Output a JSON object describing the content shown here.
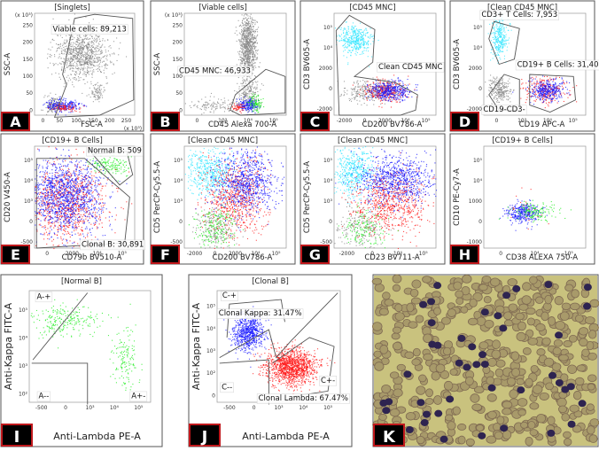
{
  "panels": [
    {
      "letter": "A",
      "title": "[Singlets]",
      "xlabel": "FSC-A",
      "ylabel": "SSC-A",
      "xticks": [
        "0",
        "50",
        "100",
        "150",
        "200",
        "250"
      ],
      "yticks": [
        "0",
        "50",
        "100",
        "150",
        "200",
        "250"
      ],
      "xunit": "(x 10³)",
      "yunit": "(x 10³)",
      "gates": [
        "Viable cells: 89,213"
      ]
    },
    {
      "letter": "B",
      "title": "[Viable cells]",
      "xlabel": "CD45 Alexa 700-A",
      "ylabel": "SSC-A",
      "xticks": [
        "0",
        "10³",
        "10⁴",
        "10⁵"
      ],
      "yticks": [
        "0",
        "50",
        "100",
        "150",
        "200",
        "250"
      ],
      "yunit": "(x 10³)",
      "gates": [
        "CD45 MNC: 46,933"
      ]
    },
    {
      "letter": "C",
      "title": "[CD45 MNC]",
      "xlabel": "CD200 BV786-A",
      "ylabel": "CD3 BV605-A",
      "xticks": [
        "-2000",
        "0",
        "2000",
        "10⁴",
        "10⁵"
      ],
      "yticks": [
        "-2000",
        "0",
        "2000",
        "10⁴",
        "10⁵"
      ],
      "gates": [
        "Clean CD45 MNC"
      ]
    },
    {
      "letter": "D",
      "title": "[Clean CD45 MNC]",
      "xlabel": "CD19 APC-A",
      "ylabel": "CD3 BV605-A",
      "xticks": [
        "0",
        "10³",
        "10⁴",
        "10⁵"
      ],
      "yticks": [
        "-2000",
        "0",
        "2000",
        "10⁴",
        "10⁵"
      ],
      "gates": [
        "CD3+ T Cells: 7,953",
        "CD19+ B Cells: 31,408",
        "CD19-CD3-"
      ]
    },
    {
      "letter": "E",
      "title": "[CD19+ B Cells]",
      "xlabel": "CD79b BV510-A",
      "ylabel": "CD20 V450-A",
      "xticks": [
        "0",
        "2000",
        "10⁴",
        "10⁵"
      ],
      "yticks": [
        "-500",
        "0",
        "10³",
        "10⁴",
        "10⁵"
      ],
      "gates": [
        "Normal B: 509",
        "Clonal B: 30,891"
      ]
    },
    {
      "letter": "F",
      "title": "[Clean CD45 MNC]",
      "xlabel": "CD200 BV786-A",
      "ylabel": "CD5 PerCP-Cy5.5-A",
      "xticks": [
        "-2000",
        "0",
        "2000",
        "10⁴",
        "10⁵"
      ],
      "yticks": [
        "-500",
        "0",
        "10³",
        "10⁴",
        "10⁵"
      ],
      "gates": []
    },
    {
      "letter": "G",
      "title": "[Clean CD45 MNC]",
      "xlabel": "CD23 BV711-A",
      "ylabel": "CD5 PerCP-Cy5.5-A",
      "xticks": [
        "-2000",
        "0",
        "10⁴",
        "10⁵"
      ],
      "yticks": [
        "-500",
        "0",
        "10³",
        "10⁴",
        "10⁵"
      ],
      "gates": []
    },
    {
      "letter": "H",
      "title": "[CD19+ B Cells]",
      "xlabel": "CD38 ALEXA 750-A",
      "ylabel": "CD10 PE-Cy7-A",
      "xticks": [
        "0",
        "10⁴",
        "10⁵"
      ],
      "yticks": [
        "-1000",
        "0",
        "1000",
        "10⁴",
        "10⁵"
      ],
      "gates": []
    },
    {
      "letter": "I",
      "title": "[Normal B]",
      "xlabel": "Anti-Lambda PE-A",
      "ylabel": "Anti-Kappa FITC-A",
      "xticks": [
        "-500",
        "0",
        "10³",
        "10⁴",
        "10⁵"
      ],
      "yticks": [
        "10²",
        "10³",
        "10⁴",
        "10⁵"
      ],
      "gates": [
        "A-+",
        "A--",
        "A+-"
      ]
    },
    {
      "letter": "J",
      "title": "[Clonal B]",
      "xlabel": "Anti-Lambda PE-A",
      "ylabel": "Anti-Kappa FITC-A",
      "xticks": [
        "-500",
        "0",
        "10³",
        "10⁴",
        "10⁵"
      ],
      "yticks": [
        "0",
        "10²",
        "10³",
        "10⁴",
        "10⁵"
      ],
      "gates": [
        "C-+",
        "Clonal Kappa: 31.47%",
        "C--",
        "C+-",
        "Clonal Lambda: 67.47%"
      ]
    },
    {
      "letter": "K"
    }
  ],
  "colors": {
    "frame": "#555555",
    "label_bg": "#000000",
    "label_border": "#c0181c",
    "gate": "#555555",
    "blue": "#1a1aff",
    "red": "#ff1a1a",
    "cyan": "#33e6ff",
    "green": "#22ee22",
    "gray": "#888888"
  }
}
